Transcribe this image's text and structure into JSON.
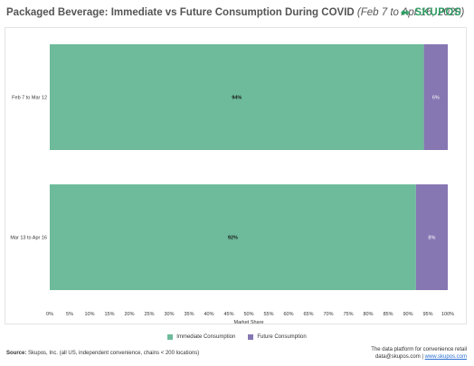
{
  "header": {
    "title": "Packaged Beverage: Immediate vs Future Consumption During COVID",
    "subtitle": "(Feb 7 to Apr 16, 2020)",
    "logo_text": "SKUPOS"
  },
  "chart_data": {
    "type": "bar",
    "orientation": "horizontal",
    "stacked": true,
    "categories": [
      "Feb 7 to Mar 12",
      "Mar 13 to Apr 16"
    ],
    "series": [
      {
        "name": "Immediate Consumption",
        "values": [
          94,
          92
        ],
        "labels": [
          "94%",
          "92%"
        ],
        "color": "#6dbb9a"
      },
      {
        "name": "Future Consumption",
        "values": [
          6,
          8
        ],
        "labels": [
          "6%",
          "8%"
        ],
        "color": "#8677b3"
      }
    ],
    "xlabel": "Market Share",
    "xlim": [
      0,
      100
    ],
    "xticks": [
      "0%",
      "5%",
      "10%",
      "15%",
      "20%",
      "25%",
      "30%",
      "35%",
      "40%",
      "45%",
      "50%",
      "55%",
      "60%",
      "65%",
      "70%",
      "75%",
      "80%",
      "85%",
      "90%",
      "95%",
      "100%"
    ],
    "legend_position": "bottom"
  },
  "footer": {
    "source_label": "Source:",
    "source_text": "Skupos, Inc. (all US, independent convenience, chains < 200 locations)",
    "tagline": "The data platform for convenience retail",
    "email": "data@skupos.com",
    "separator": " | ",
    "website": "www.skupos.com"
  }
}
